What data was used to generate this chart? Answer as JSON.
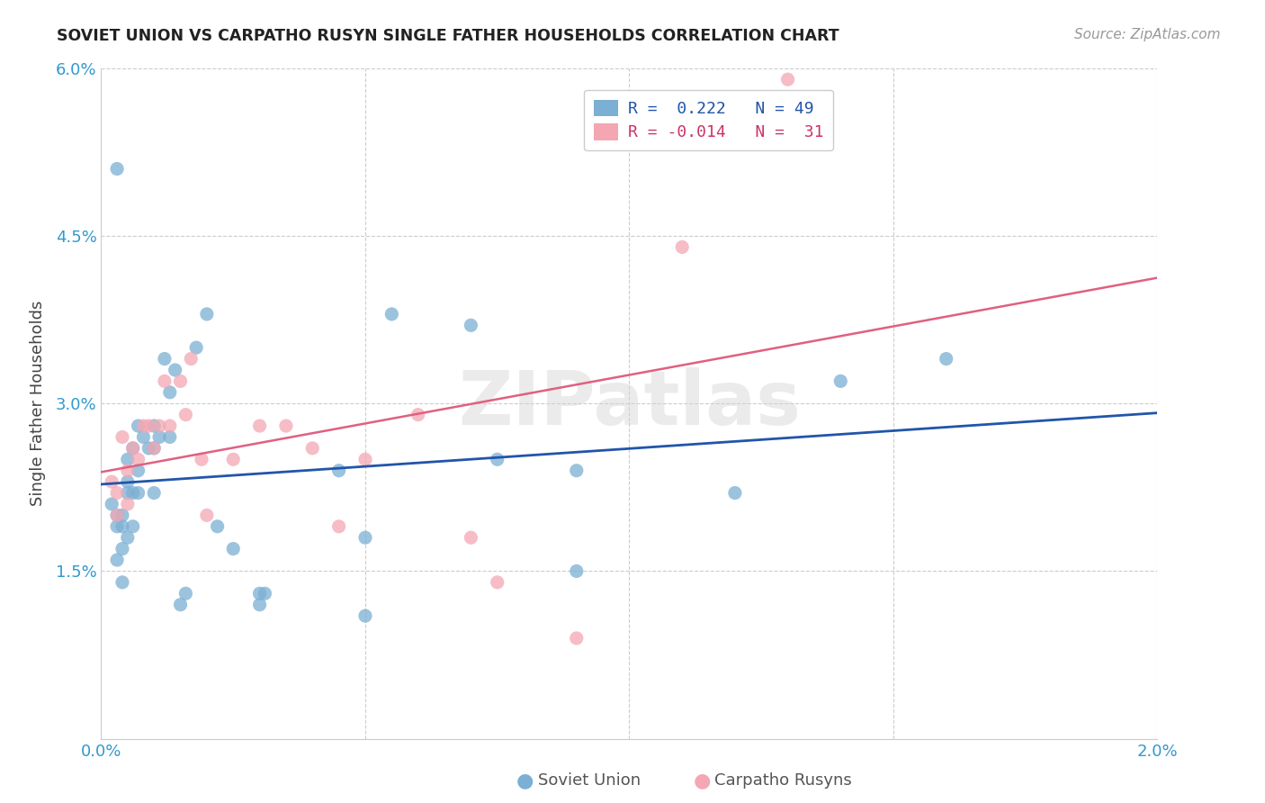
{
  "title": "SOVIET UNION VS CARPATHO RUSYN SINGLE FATHER HOUSEHOLDS CORRELATION CHART",
  "source": "Source: ZipAtlas.com",
  "ylabel": "Single Father Households",
  "xlim": [
    0.0,
    0.02
  ],
  "ylim": [
    0.0,
    0.06
  ],
  "xticks": [
    0.0,
    0.005,
    0.01,
    0.015,
    0.02
  ],
  "xticklabels": [
    "0.0%",
    "",
    "",
    "",
    "2.0%"
  ],
  "yticks": [
    0.0,
    0.015,
    0.03,
    0.045,
    0.06
  ],
  "yticklabels": [
    "",
    "1.5%",
    "3.0%",
    "4.5%",
    "6.0%"
  ],
  "soviet_color": "#7BAFD4",
  "carpatho_color": "#F4A7B3",
  "soviet_line_color": "#2255AA",
  "carpatho_line_color": "#E06080",
  "watermark": "ZIPatlas",
  "soviet_x": [
    0.0002,
    0.0003,
    0.0003,
    0.0003,
    0.0003,
    0.0004,
    0.0004,
    0.0004,
    0.0004,
    0.0005,
    0.0005,
    0.0005,
    0.0005,
    0.0006,
    0.0006,
    0.0006,
    0.0007,
    0.0007,
    0.0007,
    0.0008,
    0.0009,
    0.001,
    0.001,
    0.001,
    0.0011,
    0.0012,
    0.0013,
    0.0013,
    0.0014,
    0.0015,
    0.0016,
    0.0018,
    0.002,
    0.0022,
    0.0025,
    0.003,
    0.003,
    0.0031,
    0.0045,
    0.005,
    0.005,
    0.0055,
    0.007,
    0.0075,
    0.009,
    0.009,
    0.012,
    0.014,
    0.016
  ],
  "soviet_y": [
    0.021,
    0.02,
    0.019,
    0.016,
    0.051,
    0.02,
    0.019,
    0.017,
    0.014,
    0.025,
    0.023,
    0.022,
    0.018,
    0.026,
    0.022,
    0.019,
    0.028,
    0.024,
    0.022,
    0.027,
    0.026,
    0.028,
    0.026,
    0.022,
    0.027,
    0.034,
    0.027,
    0.031,
    0.033,
    0.012,
    0.013,
    0.035,
    0.038,
    0.019,
    0.017,
    0.013,
    0.012,
    0.013,
    0.024,
    0.018,
    0.011,
    0.038,
    0.037,
    0.025,
    0.024,
    0.015,
    0.022,
    0.032,
    0.034
  ],
  "carpatho_x": [
    0.0002,
    0.0003,
    0.0003,
    0.0004,
    0.0005,
    0.0005,
    0.0006,
    0.0007,
    0.0008,
    0.0009,
    0.001,
    0.0011,
    0.0012,
    0.0013,
    0.0015,
    0.0016,
    0.0017,
    0.0019,
    0.002,
    0.0025,
    0.003,
    0.0035,
    0.004,
    0.0045,
    0.005,
    0.006,
    0.007,
    0.0075,
    0.009,
    0.011,
    0.013
  ],
  "carpatho_y": [
    0.023,
    0.022,
    0.02,
    0.027,
    0.024,
    0.021,
    0.026,
    0.025,
    0.028,
    0.028,
    0.026,
    0.028,
    0.032,
    0.028,
    0.032,
    0.029,
    0.034,
    0.025,
    0.02,
    0.025,
    0.028,
    0.028,
    0.026,
    0.019,
    0.025,
    0.029,
    0.018,
    0.014,
    0.009,
    0.044,
    0.059
  ]
}
